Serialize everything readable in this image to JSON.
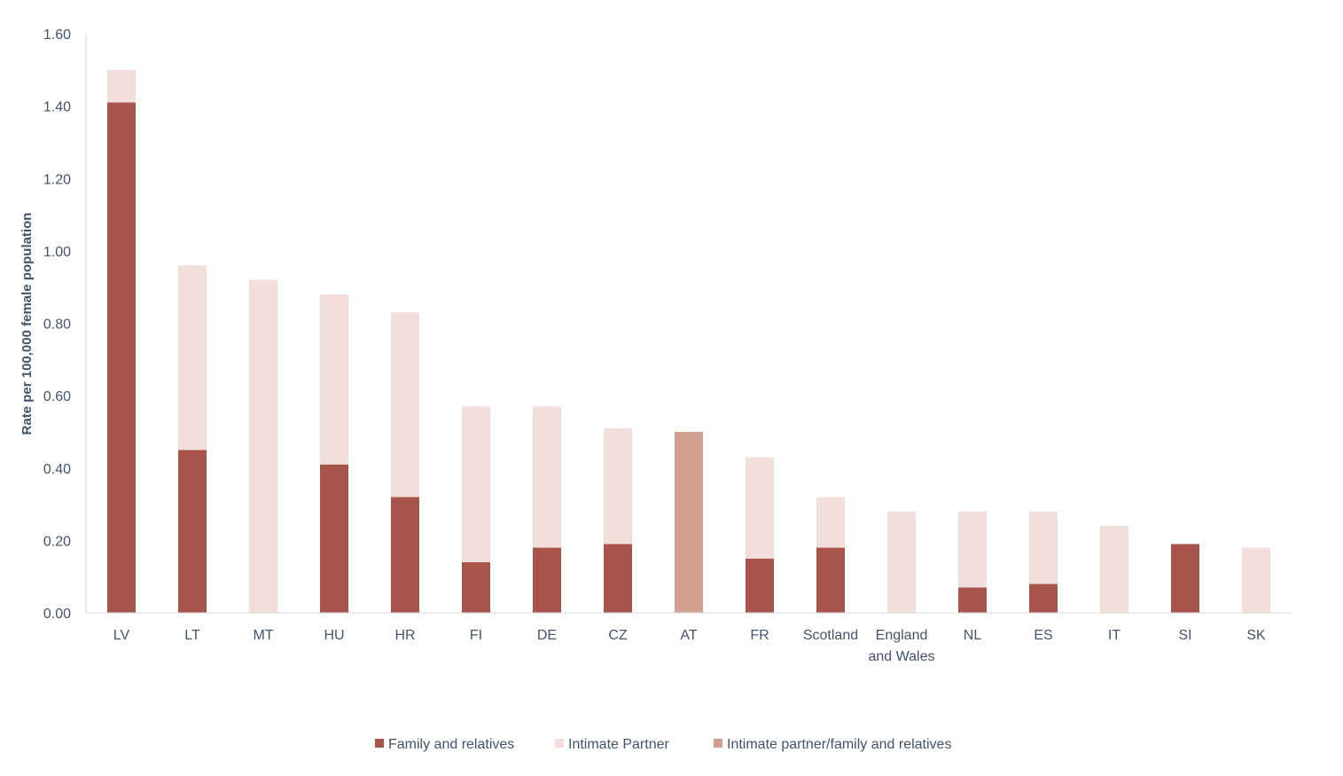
{
  "chart_data": {
    "type": "bar",
    "stacked": true,
    "title": "",
    "xlabel": "",
    "ylabel": "Rate per 100,000 female population",
    "ylim": [
      0,
      1.6
    ],
    "yticks": [
      "0.00",
      "0.20",
      "0.40",
      "0.60",
      "0.80",
      "1.00",
      "1.20",
      "1.40",
      "1.60"
    ],
    "ytick_values": [
      0,
      0.2,
      0.4,
      0.6,
      0.8,
      1.0,
      1.2,
      1.4,
      1.6
    ],
    "grid": false,
    "legend_position": "bottom",
    "categories": [
      [
        "LV"
      ],
      [
        "LT"
      ],
      [
        "MT"
      ],
      [
        "HU"
      ],
      [
        "HR"
      ],
      [
        "FI"
      ],
      [
        "DE"
      ],
      [
        "CZ"
      ],
      [
        "AT"
      ],
      [
        "FR"
      ],
      [
        "Scotland"
      ],
      [
        "England",
        "and Wales"
      ],
      [
        "NL"
      ],
      [
        "ES"
      ],
      [
        "IT"
      ],
      [
        "SI"
      ],
      [
        "SK"
      ]
    ],
    "series": [
      {
        "name": "Family and relatives",
        "color": "#a9544a",
        "values": [
          1.41,
          0.45,
          0,
          0.41,
          0.32,
          0.14,
          0.18,
          0.19,
          0,
          0.15,
          0.18,
          0,
          0.07,
          0.08,
          0,
          0.19,
          0
        ]
      },
      {
        "name": "Intimate Partner",
        "color": "#f2dfdc",
        "values": [
          0.09,
          0.51,
          0.92,
          0.47,
          0.51,
          0.43,
          0.39,
          0.32,
          0,
          0.28,
          0.14,
          0.28,
          0.21,
          0.2,
          0.24,
          0,
          0.18
        ]
      },
      {
        "name": "Intimate partner/family and relatives",
        "color": "#d49f93",
        "values": [
          0,
          0,
          0,
          0,
          0,
          0,
          0,
          0,
          0.5,
          0,
          0,
          0,
          0,
          0,
          0,
          0,
          0
        ]
      }
    ]
  }
}
